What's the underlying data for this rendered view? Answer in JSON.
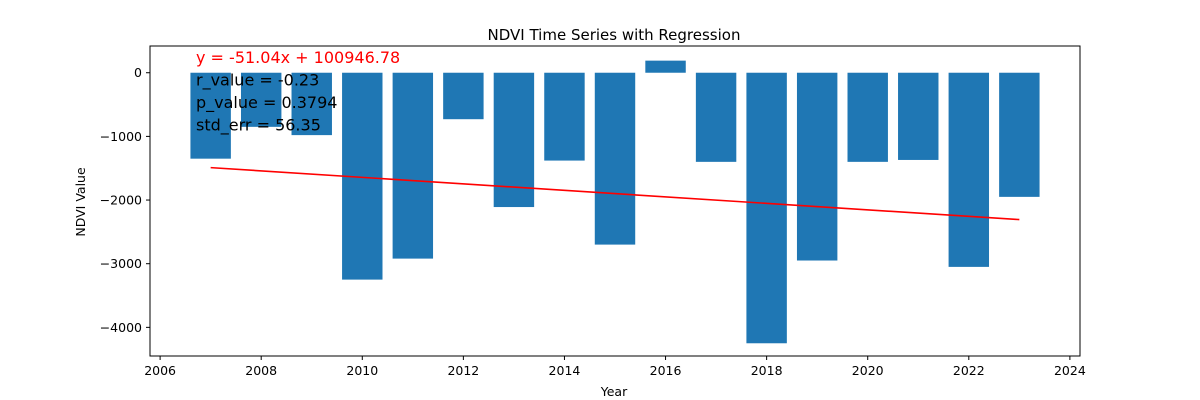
{
  "chart_data": {
    "type": "bar",
    "title": "NDVI Time Series with Regression",
    "xlabel": "Year",
    "ylabel": "NDVI Value",
    "xlim": [
      2005.8,
      2024.2
    ],
    "ylim": [
      -4450,
      420
    ],
    "xticks": [
      2006,
      2008,
      2010,
      2012,
      2014,
      2016,
      2018,
      2020,
      2022,
      2024
    ],
    "xtick_labels": [
      "2006",
      "2008",
      "2010",
      "2012",
      "2014",
      "2016",
      "2018",
      "2020",
      "2022",
      "2024"
    ],
    "yticks": [
      0,
      -1000,
      -2000,
      -3000,
      -4000
    ],
    "ytick_labels": [
      "0",
      "−1000",
      "−2000",
      "−3000",
      "−4000"
    ],
    "bar_color": "#1f77b4",
    "bar_width": 0.8,
    "series": [
      {
        "name": "NDVI",
        "x": [
          2007,
          2008,
          2009,
          2010,
          2011,
          2012,
          2013,
          2014,
          2015,
          2016,
          2017,
          2018,
          2019,
          2020,
          2021,
          2022,
          2023
        ],
        "values": [
          -1350,
          -850,
          -980,
          -3250,
          -2920,
          -730,
          -2110,
          -1380,
          -2700,
          190,
          -1400,
          -4250,
          -2950,
          -1400,
          -1370,
          -3050,
          -1950
        ]
      }
    ],
    "regression": {
      "slope": -51.04,
      "intercept": 100946.78,
      "color": "#ff0000",
      "x_range": [
        2007,
        2023
      ]
    },
    "annotations": [
      {
        "text": "y = -51.04x + 100946.78",
        "color": "#ff0000"
      },
      {
        "text": "r_value = -0.23",
        "color": "#000000"
      },
      {
        "text": "p_value = 0.3794",
        "color": "#000000"
      },
      {
        "text": "std_err = 56.35",
        "color": "#000000"
      }
    ]
  }
}
